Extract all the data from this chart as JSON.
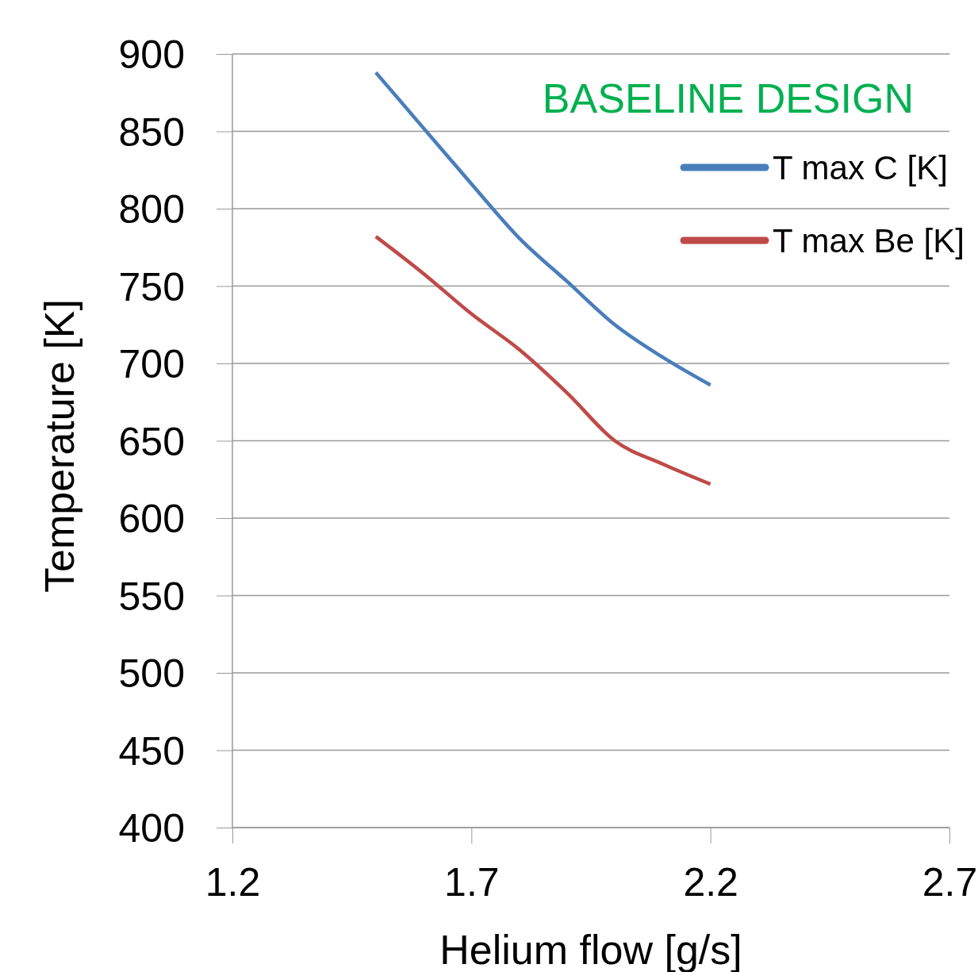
{
  "chart_data": {
    "type": "line",
    "xlabel": "Helium flow [g/s]",
    "ylabel": "Temperature [K]",
    "annotations": [
      "BASELINE DESIGN"
    ],
    "x": [
      1.5,
      1.6,
      1.7,
      1.8,
      1.9,
      2.0,
      2.1,
      2.2
    ],
    "series": [
      {
        "name": "T max C [K]",
        "color": "#4a7ebb",
        "values": [
          888,
          852,
          816,
          781,
          753,
          725,
          704,
          686
        ]
      },
      {
        "name": "T max Be [K]",
        "color": "#be4b48",
        "values": [
          782,
          758,
          732,
          709,
          681,
          650,
          635,
          622
        ]
      }
    ],
    "xlim": [
      1.2,
      2.7
    ],
    "xticks": [
      1.2,
      1.7,
      2.2,
      2.7
    ],
    "ylim": [
      400,
      900
    ],
    "yticks": [
      400,
      450,
      500,
      550,
      600,
      650,
      700,
      750,
      800,
      850,
      900
    ],
    "grid": "y",
    "legend": "top right",
    "marker": "none",
    "line_style": "solid"
  }
}
